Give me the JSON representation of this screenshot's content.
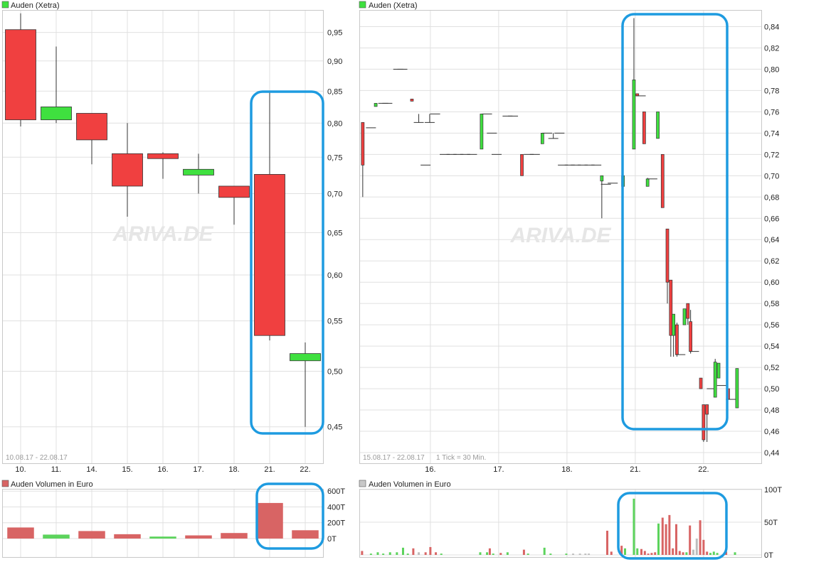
{
  "colors": {
    "up": "#3FE03F",
    "down": "#F04040",
    "volume_up": "#5CD35C",
    "volume_down": "#D86464",
    "highlight": "#1E9BE0",
    "grid": "#E0E0E0"
  },
  "left_price": {
    "legend": "Auden (Xetra)",
    "watermark": "ARIVA.DE",
    "range_label": "10.08.17 - 22.08.17"
  },
  "left_volume": {
    "legend": "Auden Volumen in Euro"
  },
  "right_price": {
    "legend": "Auden (Xetra)",
    "watermark": "ARIVA.DE",
    "range_label": "15.08.17 - 22.08.17",
    "tick_label": "1 Tick = 30 Min."
  },
  "right_volume": {
    "legend": "Auden Volumen in Euro"
  },
  "chart_data": [
    {
      "id": "daily-price",
      "type": "candlestick",
      "title": "Auden (Xetra)",
      "scale": "log",
      "ylim": [
        0.42,
        0.99
      ],
      "y_ticks": [
        0.45,
        0.5,
        0.55,
        0.6,
        0.65,
        0.7,
        0.75,
        0.8,
        0.85,
        0.9,
        0.95
      ],
      "y_tick_labels": [
        "0,45",
        "0,50",
        "0,55",
        "0,60",
        "0,65",
        "0,70",
        "0,75",
        "0,80",
        "0,85",
        "0,90",
        "0,95"
      ],
      "categories": [
        "10.",
        "11.",
        "14.",
        "15.",
        "16.",
        "17.",
        "18.",
        "21.",
        "22."
      ],
      "candles": [
        {
          "open": 0.955,
          "high": 0.985,
          "low": 0.795,
          "close": 0.805
        },
        {
          "open": 0.805,
          "high": 0.925,
          "low": 0.8,
          "close": 0.825
        },
        {
          "open": 0.815,
          "high": 0.815,
          "low": 0.74,
          "close": 0.775
        },
        {
          "open": 0.755,
          "high": 0.8,
          "low": 0.67,
          "close": 0.71
        },
        {
          "open": 0.755,
          "high": 0.757,
          "low": 0.72,
          "close": 0.748
        },
        {
          "open": 0.725,
          "high": 0.755,
          "low": 0.7,
          "close": 0.733
        },
        {
          "open": 0.71,
          "high": 0.71,
          "low": 0.66,
          "close": 0.695
        },
        {
          "open": 0.726,
          "high": 0.849,
          "low": 0.53,
          "close": 0.535
        },
        {
          "open": 0.51,
          "high": 0.528,
          "low": 0.45,
          "close": 0.517
        }
      ],
      "grid": true
    },
    {
      "id": "daily-volume",
      "type": "bar",
      "title": "Auden Volumen in Euro",
      "ylim": [
        0,
        620000
      ],
      "y_ticks": [
        0,
        200000,
        400000,
        600000
      ],
      "y_tick_labels": [
        "0T",
        "200T",
        "400T",
        "600T"
      ],
      "categories": [
        "10.",
        "11.",
        "14.",
        "15.",
        "16.",
        "17.",
        "18.",
        "21.",
        "22."
      ],
      "values": [
        140000,
        50000,
        95000,
        55000,
        25000,
        40000,
        70000,
        450000,
        105000
      ],
      "direction": [
        "down",
        "up",
        "down",
        "down",
        "up",
        "down",
        "down",
        "down",
        "down"
      ],
      "grid": true
    },
    {
      "id": "intraday-price",
      "type": "candlestick",
      "title": "Auden (Xetra)",
      "interval": "30 Min.",
      "ylim": [
        0.43,
        0.855
      ],
      "y_ticks": [
        0.44,
        0.46,
        0.48,
        0.5,
        0.52,
        0.54,
        0.56,
        0.58,
        0.6,
        0.62,
        0.64,
        0.66,
        0.68,
        0.7,
        0.72,
        0.74,
        0.76,
        0.78,
        0.8,
        0.82,
        0.84
      ],
      "y_tick_labels": [
        "0,44",
        "0,46",
        "0,48",
        "0,50",
        "0,52",
        "0,54",
        "0,56",
        "0,58",
        "0,60",
        "0,62",
        "0,64",
        "0,66",
        "0,68",
        "0,70",
        "0,72",
        "0,74",
        "0,76",
        "0,78",
        "0,80",
        "0,82",
        "0,84"
      ],
      "day_labels": [
        "16.",
        "17.",
        "18.",
        "21.",
        "22."
      ],
      "day_positions": [
        10.3,
        20.3,
        30.3,
        40.3,
        50.3
      ],
      "candles": [
        {
          "t": 0.4,
          "open": 0.75,
          "high": 0.75,
          "low": 0.68,
          "close": 0.71
        },
        {
          "t": 1.6,
          "open": 0.745,
          "high": 0.745,
          "low": 0.745,
          "close": 0.745
        },
        {
          "t": 2.3,
          "open": 0.765,
          "high": 0.768,
          "low": 0.765,
          "close": 0.768
        },
        {
          "t": 3.4,
          "open": 0.768,
          "high": 0.768,
          "low": 0.768,
          "close": 0.768
        },
        {
          "t": 4.0,
          "open": 0.768,
          "high": 0.768,
          "low": 0.768,
          "close": 0.768
        },
        {
          "t": 5.6,
          "open": 0.8,
          "high": 0.8,
          "low": 0.8,
          "close": 0.8
        },
        {
          "t": 6.2,
          "open": 0.8,
          "high": 0.8,
          "low": 0.8,
          "close": 0.8
        },
        {
          "t": 7.6,
          "open": 0.772,
          "high": 0.772,
          "low": 0.77,
          "close": 0.77
        },
        {
          "t": 8.6,
          "open": 0.75,
          "high": 0.758,
          "low": 0.75,
          "close": 0.75
        },
        {
          "t": 9.6,
          "open": 0.71,
          "high": 0.71,
          "low": 0.71,
          "close": 0.71
        },
        {
          "t": 10.2,
          "open": 0.75,
          "high": 0.758,
          "low": 0.75,
          "close": 0.75
        },
        {
          "t": 11.0,
          "open": 0.758,
          "high": 0.758,
          "low": 0.758,
          "close": 0.758
        },
        {
          "t": 12.4,
          "open": 0.72,
          "high": 0.72,
          "low": 0.72,
          "close": 0.72
        },
        {
          "t": 13.4,
          "open": 0.72,
          "high": 0.72,
          "low": 0.72,
          "close": 0.72
        },
        {
          "t": 14.4,
          "open": 0.72,
          "high": 0.72,
          "low": 0.72,
          "close": 0.72
        },
        {
          "t": 15.4,
          "open": 0.72,
          "high": 0.72,
          "low": 0.72,
          "close": 0.72
        },
        {
          "t": 16.4,
          "open": 0.72,
          "high": 0.72,
          "low": 0.72,
          "close": 0.72
        },
        {
          "t": 17.8,
          "open": 0.725,
          "high": 0.758,
          "low": 0.725,
          "close": 0.758
        },
        {
          "t": 18.6,
          "open": 0.758,
          "high": 0.758,
          "low": 0.758,
          "close": 0.758
        },
        {
          "t": 19.3,
          "open": 0.74,
          "high": 0.74,
          "low": 0.74,
          "close": 0.74
        },
        {
          "t": 20.0,
          "open": 0.72,
          "high": 0.72,
          "low": 0.72,
          "close": 0.72
        },
        {
          "t": 21.6,
          "open": 0.756,
          "high": 0.756,
          "low": 0.756,
          "close": 0.756
        },
        {
          "t": 22.4,
          "open": 0.756,
          "high": 0.756,
          "low": 0.756,
          "close": 0.756
        },
        {
          "t": 23.7,
          "open": 0.72,
          "high": 0.72,
          "low": 0.7,
          "close": 0.7
        },
        {
          "t": 24.7,
          "open": 0.72,
          "high": 0.72,
          "low": 0.72,
          "close": 0.72
        },
        {
          "t": 25.6,
          "open": 0.72,
          "high": 0.72,
          "low": 0.72,
          "close": 0.72
        },
        {
          "t": 26.7,
          "open": 0.73,
          "high": 0.74,
          "low": 0.73,
          "close": 0.74
        },
        {
          "t": 27.4,
          "open": 0.74,
          "high": 0.74,
          "low": 0.74,
          "close": 0.74
        },
        {
          "t": 28.3,
          "open": 0.735,
          "high": 0.74,
          "low": 0.735,
          "close": 0.735
        },
        {
          "t": 29.2,
          "open": 0.74,
          "high": 0.74,
          "low": 0.74,
          "close": 0.74
        },
        {
          "t": 29.7,
          "open": 0.71,
          "high": 0.71,
          "low": 0.71,
          "close": 0.71
        },
        {
          "t": 30.7,
          "open": 0.71,
          "high": 0.71,
          "low": 0.71,
          "close": 0.71
        },
        {
          "t": 31.6,
          "open": 0.71,
          "high": 0.71,
          "low": 0.71,
          "close": 0.71
        },
        {
          "t": 32.6,
          "open": 0.71,
          "high": 0.71,
          "low": 0.71,
          "close": 0.71
        },
        {
          "t": 33.6,
          "open": 0.71,
          "high": 0.71,
          "low": 0.71,
          "close": 0.71
        },
        {
          "t": 34.6,
          "open": 0.71,
          "high": 0.71,
          "low": 0.71,
          "close": 0.71
        },
        {
          "t": 35.4,
          "open": 0.695,
          "high": 0.7,
          "low": 0.66,
          "close": 0.7
        },
        {
          "t": 36.0,
          "open": 0.692,
          "high": 0.692,
          "low": 0.692,
          "close": 0.692
        },
        {
          "t": 37.0,
          "open": 0.693,
          "high": 0.693,
          "low": 0.693,
          "close": 0.693
        },
        {
          "t": 38.5,
          "open": 0.69,
          "high": 0.7,
          "low": 0.68,
          "close": 0.7
        },
        {
          "t": 40.1,
          "open": 0.725,
          "high": 0.848,
          "low": 0.725,
          "close": 0.79
        },
        {
          "t": 40.6,
          "open": 0.777,
          "high": 0.777,
          "low": 0.775,
          "close": 0.775
        },
        {
          "t": 41.1,
          "open": 0.775,
          "high": 0.775,
          "low": 0.775,
          "close": 0.775
        },
        {
          "t": 41.6,
          "open": 0.76,
          "high": 0.76,
          "low": 0.73,
          "close": 0.73
        },
        {
          "t": 42.1,
          "open": 0.69,
          "high": 0.698,
          "low": 0.69,
          "close": 0.697
        },
        {
          "t": 42.8,
          "open": 0.697,
          "high": 0.697,
          "low": 0.697,
          "close": 0.697
        },
        {
          "t": 43.6,
          "open": 0.735,
          "high": 0.76,
          "low": 0.735,
          "close": 0.76
        },
        {
          "t": 44.3,
          "open": 0.72,
          "high": 0.72,
          "low": 0.67,
          "close": 0.67
        },
        {
          "t": 45.0,
          "open": 0.65,
          "high": 0.65,
          "low": 0.58,
          "close": 0.6
        },
        {
          "t": 45.5,
          "open": 0.602,
          "high": 0.602,
          "low": 0.53,
          "close": 0.55
        },
        {
          "t": 45.9,
          "open": 0.55,
          "high": 0.57,
          "low": 0.53,
          "close": 0.57
        },
        {
          "t": 46.4,
          "open": 0.56,
          "high": 0.562,
          "low": 0.53,
          "close": 0.532
        },
        {
          "t": 46.9,
          "open": 0.532,
          "high": 0.532,
          "low": 0.532,
          "close": 0.532
        },
        {
          "t": 47.5,
          "open": 0.56,
          "high": 0.575,
          "low": 0.56,
          "close": 0.575
        },
        {
          "t": 48.0,
          "open": 0.58,
          "high": 0.58,
          "low": 0.56,
          "close": 0.566
        },
        {
          "t": 48.4,
          "open": 0.563,
          "high": 0.574,
          "low": 0.533,
          "close": 0.535
        },
        {
          "t": 48.9,
          "open": 0.535,
          "high": 0.535,
          "low": 0.535,
          "close": 0.535
        },
        {
          "t": 49.9,
          "open": 0.51,
          "high": 0.51,
          "low": 0.5,
          "close": 0.5
        },
        {
          "t": 50.3,
          "open": 0.485,
          "high": 0.485,
          "low": 0.45,
          "close": 0.452
        },
        {
          "t": 50.8,
          "open": 0.485,
          "high": 0.485,
          "low": 0.45,
          "close": 0.476
        },
        {
          "t": 51.5,
          "open": 0.5,
          "high": 0.5,
          "low": 0.5,
          "close": 0.5
        },
        {
          "t": 52.0,
          "open": 0.492,
          "high": 0.528,
          "low": 0.492,
          "close": 0.525
        },
        {
          "t": 52.5,
          "open": 0.51,
          "high": 0.524,
          "low": 0.51,
          "close": 0.524
        },
        {
          "t": 53.0,
          "open": 0.503,
          "high": 0.503,
          "low": 0.503,
          "close": 0.503
        },
        {
          "t": 53.9,
          "open": 0.5,
          "high": 0.5,
          "low": 0.49,
          "close": 0.49
        },
        {
          "t": 54.3,
          "open": 0.49,
          "high": 0.49,
          "low": 0.49,
          "close": 0.49
        },
        {
          "t": 55.2,
          "open": 0.482,
          "high": 0.519,
          "low": 0.482,
          "close": 0.519
        }
      ],
      "grid": true
    },
    {
      "id": "intraday-volume",
      "type": "bar",
      "title": "Auden Volumen in Euro",
      "ylim": [
        0,
        100000
      ],
      "y_ticks": [
        0,
        50000,
        100000
      ],
      "y_tick_labels": [
        "0T",
        "50T",
        "100T"
      ],
      "day_labels": [
        "16.",
        "17.",
        "18.",
        "21.",
        "22."
      ],
      "bars": [
        {
          "t": 0.3,
          "value": 6000,
          "direction": "down"
        },
        {
          "t": 1.6,
          "value": 2000,
          "direction": "up"
        },
        {
          "t": 2.6,
          "value": 4000,
          "direction": "up"
        },
        {
          "t": 3.4,
          "value": 2000,
          "direction": "up"
        },
        {
          "t": 4.4,
          "value": 4000,
          "direction": "up"
        },
        {
          "t": 5.4,
          "value": 4000,
          "direction": "up"
        },
        {
          "t": 6.3,
          "value": 11000,
          "direction": "up"
        },
        {
          "t": 7.0,
          "value": 2000,
          "direction": "up"
        },
        {
          "t": 7.8,
          "value": 10000,
          "direction": "down"
        },
        {
          "t": 8.6,
          "value": 4000,
          "direction": "flat"
        },
        {
          "t": 9.6,
          "value": 4000,
          "direction": "down"
        },
        {
          "t": 10.3,
          "value": 12000,
          "direction": "down"
        },
        {
          "t": 11.1,
          "value": 4000,
          "direction": "down"
        },
        {
          "t": 11.9,
          "value": 2000,
          "direction": "up"
        },
        {
          "t": 17.6,
          "value": 4000,
          "direction": "up"
        },
        {
          "t": 18.6,
          "value": 4000,
          "direction": "up"
        },
        {
          "t": 19.0,
          "value": 10000,
          "direction": "down"
        },
        {
          "t": 19.5,
          "value": 2000,
          "direction": "up"
        },
        {
          "t": 20.6,
          "value": 3000,
          "direction": "down"
        },
        {
          "t": 21.6,
          "value": 4000,
          "direction": "up"
        },
        {
          "t": 24.0,
          "value": 8000,
          "direction": "down"
        },
        {
          "t": 24.6,
          "value": 2000,
          "direction": "up"
        },
        {
          "t": 27.0,
          "value": 11000,
          "direction": "up"
        },
        {
          "t": 27.9,
          "value": 2000,
          "direction": "up"
        },
        {
          "t": 30.2,
          "value": 2000,
          "direction": "up"
        },
        {
          "t": 31.2,
          "value": 2000,
          "direction": "flat"
        },
        {
          "t": 32.2,
          "value": 2000,
          "direction": "flat"
        },
        {
          "t": 33.0,
          "value": 2000,
          "direction": "flat"
        },
        {
          "t": 33.5,
          "value": 2000,
          "direction": "flat"
        },
        {
          "t": 36.2,
          "value": 37000,
          "direction": "down"
        },
        {
          "t": 36.8,
          "value": 5000,
          "direction": "down"
        },
        {
          "t": 38.3,
          "value": 14000,
          "direction": "down"
        },
        {
          "t": 38.8,
          "value": 10000,
          "direction": "up"
        },
        {
          "t": 40.1,
          "value": 86000,
          "direction": "up"
        },
        {
          "t": 40.6,
          "value": 10000,
          "direction": "up"
        },
        {
          "t": 41.2,
          "value": 9000,
          "direction": "down"
        },
        {
          "t": 41.7,
          "value": 6000,
          "direction": "down"
        },
        {
          "t": 42.2,
          "value": 2000,
          "direction": "down"
        },
        {
          "t": 42.7,
          "value": 3000,
          "direction": "down"
        },
        {
          "t": 43.2,
          "value": 4000,
          "direction": "down"
        },
        {
          "t": 43.7,
          "value": 48000,
          "direction": "up"
        },
        {
          "t": 44.3,
          "value": 57000,
          "direction": "down"
        },
        {
          "t": 44.8,
          "value": 47000,
          "direction": "down"
        },
        {
          "t": 45.3,
          "value": 61000,
          "direction": "down"
        },
        {
          "t": 45.8,
          "value": 10000,
          "direction": "down"
        },
        {
          "t": 46.3,
          "value": 47000,
          "direction": "down"
        },
        {
          "t": 46.8,
          "value": 6000,
          "direction": "down"
        },
        {
          "t": 47.3,
          "value": 4000,
          "direction": "down"
        },
        {
          "t": 47.8,
          "value": 4000,
          "direction": "up"
        },
        {
          "t": 48.3,
          "value": 45000,
          "direction": "down"
        },
        {
          "t": 48.8,
          "value": 8000,
          "direction": "flat"
        },
        {
          "t": 49.3,
          "value": 25000,
          "direction": "flat"
        },
        {
          "t": 49.8,
          "value": 53000,
          "direction": "down"
        },
        {
          "t": 50.3,
          "value": 23000,
          "direction": "down"
        },
        {
          "t": 50.8,
          "value": 5000,
          "direction": "down"
        },
        {
          "t": 51.3,
          "value": 3000,
          "direction": "up"
        },
        {
          "t": 51.8,
          "value": 5000,
          "direction": "up"
        },
        {
          "t": 52.3,
          "value": 3000,
          "direction": "up"
        },
        {
          "t": 53.6,
          "value": 5000,
          "direction": "down"
        },
        {
          "t": 54.9,
          "value": 4000,
          "direction": "up"
        }
      ],
      "grid": true
    }
  ]
}
